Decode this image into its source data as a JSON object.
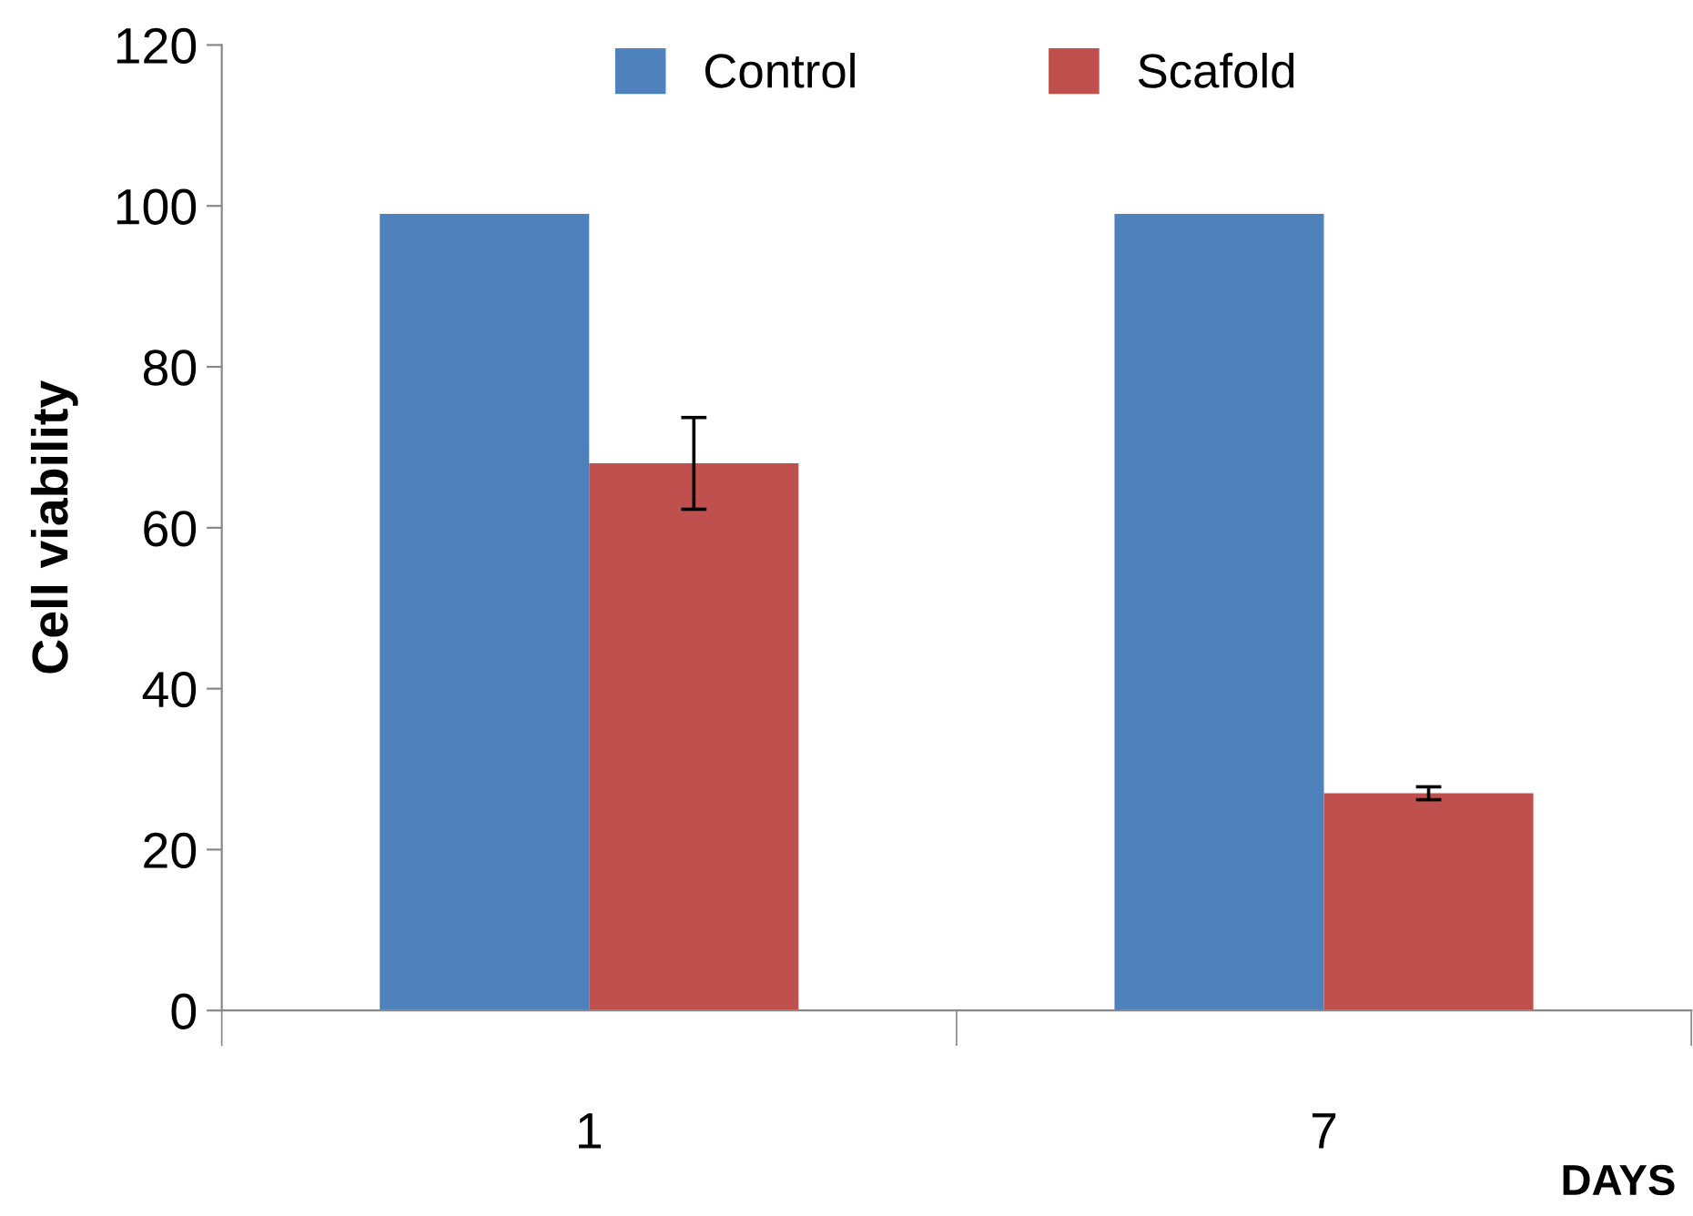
{
  "chart_data": {
    "type": "bar",
    "categories": [
      "1",
      "7"
    ],
    "xlabel": "DAYS",
    "ylabel": "Cell viability",
    "series": [
      {
        "name": "Control",
        "color": "#4f81bd",
        "values": [
          99,
          99
        ]
      },
      {
        "name": "Scafold",
        "color": "#c0504d",
        "values": [
          68,
          27
        ],
        "errors": [
          5.7,
          0.8
        ]
      }
    ],
    "ylim": [
      0,
      120
    ],
    "yticks": [
      0,
      20,
      40,
      60,
      80,
      100,
      120
    ],
    "grid": false,
    "legend": "top"
  }
}
